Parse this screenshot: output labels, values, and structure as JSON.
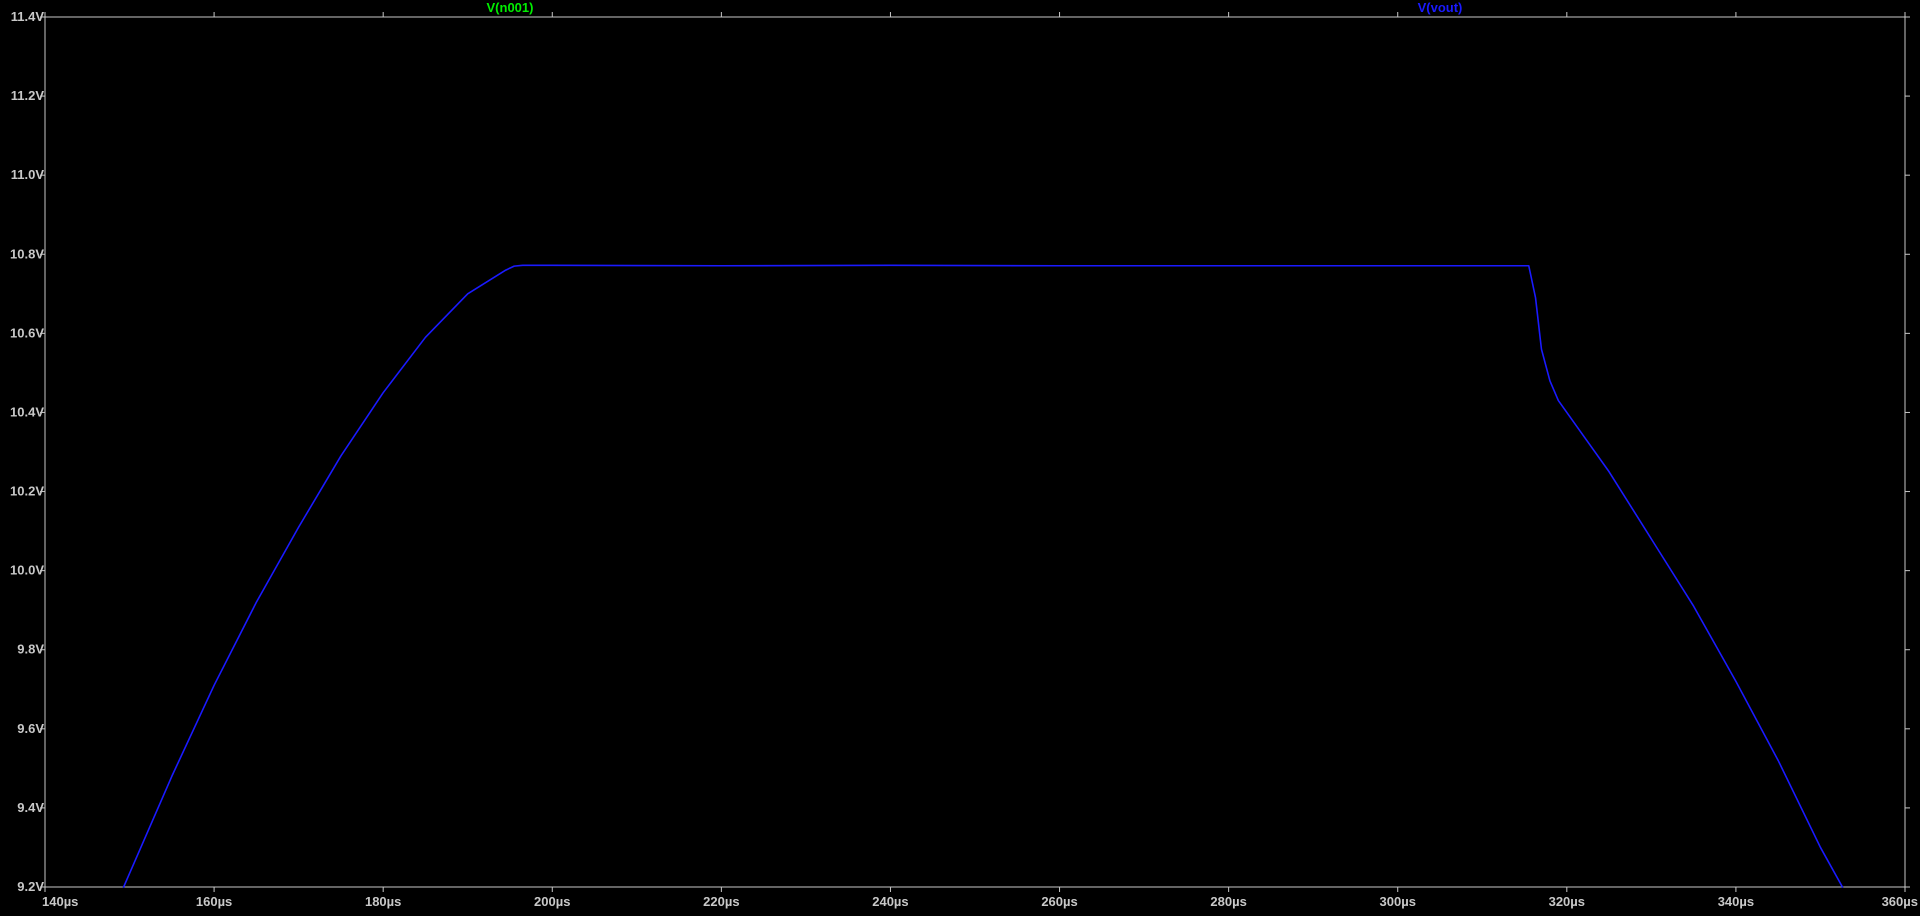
{
  "colors": {
    "background": "#000000",
    "frame": "#c8c8c8",
    "tick_label": "#c8c8c8",
    "trace_vout": "#1a1aff",
    "label_n001": "#00ee00",
    "label_vout": "#1a1aff"
  },
  "chart_data": {
    "type": "line",
    "title": "",
    "xlabel": "",
    "ylabel": "",
    "xlim": [
      140,
      360
    ],
    "ylim": [
      9.2,
      11.4
    ],
    "grid": false,
    "x_unit": "µs",
    "y_unit": "V",
    "x_ticks": [
      {
        "value": 140,
        "label": "140µs"
      },
      {
        "value": 160,
        "label": "160µs"
      },
      {
        "value": 180,
        "label": "180µs"
      },
      {
        "value": 200,
        "label": "200µs"
      },
      {
        "value": 220,
        "label": "220µs"
      },
      {
        "value": 240,
        "label": "240µs"
      },
      {
        "value": 260,
        "label": "260µs"
      },
      {
        "value": 280,
        "label": "280µs"
      },
      {
        "value": 300,
        "label": "300µs"
      },
      {
        "value": 320,
        "label": "320µs"
      },
      {
        "value": 340,
        "label": "340µs"
      },
      {
        "value": 360,
        "label": "360µs"
      }
    ],
    "y_ticks": [
      {
        "value": 9.2,
        "label": "9.2V"
      },
      {
        "value": 9.4,
        "label": "9.4V"
      },
      {
        "value": 9.6,
        "label": "9.6V"
      },
      {
        "value": 9.8,
        "label": "9.8V"
      },
      {
        "value": 10.0,
        "label": "10.0V"
      },
      {
        "value": 10.2,
        "label": "10.2V"
      },
      {
        "value": 10.4,
        "label": "10.4V"
      },
      {
        "value": 10.6,
        "label": "10.6V"
      },
      {
        "value": 10.8,
        "label": "10.8V"
      },
      {
        "value": 11.0,
        "label": "11.0V"
      },
      {
        "value": 11.2,
        "label": "11.2V"
      },
      {
        "value": 11.4,
        "label": "11.4V"
      }
    ],
    "trace_labels": [
      {
        "name": "V(n001)",
        "color": "#00ee00",
        "x_anchor": 195
      },
      {
        "name": "V(vout)",
        "color": "#1a1aff",
        "x_anchor": 305
      }
    ],
    "series": [
      {
        "name": "V(vout)",
        "color": "#1a1aff",
        "x": [
          149.3,
          155,
          160,
          165,
          170,
          175,
          180,
          185,
          190,
          194.5,
          195.5,
          196.5,
          200,
          220,
          240,
          260,
          280,
          300,
          315.5,
          316.3,
          317,
          318,
          319,
          320,
          322,
          325,
          330,
          335,
          340,
          345,
          350,
          352.6
        ],
        "y": [
          9.2,
          9.48,
          9.71,
          9.92,
          10.11,
          10.29,
          10.45,
          10.59,
          10.7,
          10.76,
          10.77,
          10.772,
          10.772,
          10.771,
          10.772,
          10.771,
          10.771,
          10.771,
          10.771,
          10.69,
          10.56,
          10.48,
          10.43,
          10.4,
          10.34,
          10.25,
          10.08,
          9.91,
          9.72,
          9.52,
          9.3,
          9.2
        ]
      }
    ]
  }
}
